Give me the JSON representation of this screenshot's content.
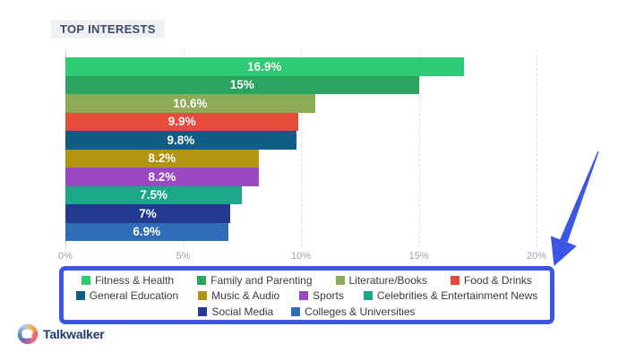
{
  "title": "TOP INTERESTS",
  "accent_blue": "#3b56e5",
  "chart_data": {
    "type": "bar",
    "orientation": "horizontal",
    "title": "TOP INTERESTS",
    "xlabel": "",
    "ylabel": "",
    "xlim": [
      0,
      20
    ],
    "x_ticks": [
      "0%",
      "5%",
      "10%",
      "15%",
      "20%"
    ],
    "x_tick_values": [
      0,
      5,
      10,
      15,
      20
    ],
    "grid": "vertical-dashed",
    "legend_position": "bottom",
    "categories": [
      "Fitness & Health",
      "Family and Parenting",
      "Literature/Books",
      "Food & Drinks",
      "General Education",
      "Music & Audio",
      "Sports",
      "Celebrities & Entertainment News",
      "Social Media",
      "Colleges & Universities"
    ],
    "values": [
      16.9,
      15,
      10.6,
      9.9,
      9.8,
      8.2,
      8.2,
      7.5,
      7,
      6.9
    ],
    "bar_labels": [
      "16.9%",
      "15%",
      "10.6%",
      "9.9%",
      "9.8%",
      "8.2%",
      "8.2%",
      "7.5%",
      "7%",
      "6.9%"
    ],
    "colors": [
      "#2dcb73",
      "#29a55f",
      "#8dac57",
      "#e74b3c",
      "#0f5d84",
      "#b29312",
      "#9b48c4",
      "#1ca78b",
      "#233a92",
      "#2f6db8"
    ]
  },
  "legend": {
    "rows": [
      [
        {
          "label": "Fitness & Health",
          "color": "#2dcb73"
        },
        {
          "label": "Family and Parenting",
          "color": "#29a55f"
        },
        {
          "label": "Literature/Books",
          "color": "#8dac57"
        },
        {
          "label": "Food & Drinks",
          "color": "#e74b3c"
        }
      ],
      [
        {
          "label": "General Education",
          "color": "#0f5d84"
        },
        {
          "label": "Music & Audio",
          "color": "#b29312"
        },
        {
          "label": "Sports",
          "color": "#9b48c4"
        },
        {
          "label": "Celebrities & Entertainment News",
          "color": "#1ca78b"
        }
      ],
      [
        {
          "label": "Social Media",
          "color": "#233a92"
        },
        {
          "label": "Colleges & Universities",
          "color": "#2f6db8"
        }
      ]
    ]
  },
  "brand": {
    "name": "Talkwalker",
    "logo_colors": {
      "blue": "#4d7fb5",
      "light_blue": "#a8c8e4",
      "orange": "#f2a23c",
      "pink": "#e86a84",
      "purple": "#6f63ae",
      "red": "#e2574f"
    }
  }
}
